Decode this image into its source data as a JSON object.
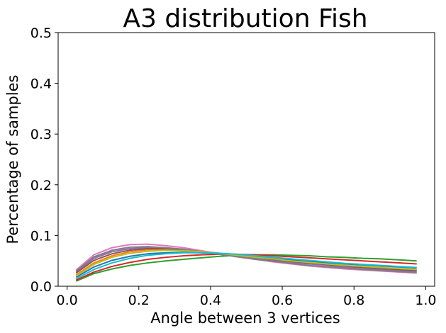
{
  "chart_data": {
    "type": "line",
    "title": "A3 distribution Fish",
    "xlabel": "Angle between 3 vertices",
    "ylabel": "Percentage of samples",
    "xlim": [
      -0.025,
      1.025
    ],
    "ylim": [
      0.0,
      0.5
    ],
    "xticks": [
      0.0,
      0.2,
      0.4,
      0.6,
      0.8,
      1.0
    ],
    "xtick_labels": [
      "0.0",
      "0.2",
      "0.4",
      "0.6",
      "0.8",
      "1.0"
    ],
    "yticks": [
      0.0,
      0.1,
      0.2,
      0.3,
      0.4,
      0.5
    ],
    "ytick_labels": [
      "0.0",
      "0.1",
      "0.2",
      "0.3",
      "0.4",
      "0.5"
    ],
    "grid": false,
    "legend": "none",
    "x": [
      0.025,
      0.075,
      0.125,
      0.175,
      0.225,
      0.275,
      0.325,
      0.375,
      0.425,
      0.475,
      0.525,
      0.575,
      0.625,
      0.675,
      0.725,
      0.775,
      0.825,
      0.875,
      0.925,
      0.975
    ],
    "series": [
      {
        "color": "#1f77b4",
        "values": [
          0.018,
          0.038,
          0.051,
          0.059,
          0.064,
          0.066,
          0.067,
          0.066,
          0.064,
          0.061,
          0.058,
          0.055,
          0.052,
          0.049,
          0.046,
          0.044,
          0.042,
          0.04,
          0.038,
          0.036
        ]
      },
      {
        "color": "#ff7f0e",
        "values": [
          0.022,
          0.046,
          0.06,
          0.068,
          0.072,
          0.073,
          0.072,
          0.069,
          0.065,
          0.061,
          0.057,
          0.053,
          0.049,
          0.046,
          0.043,
          0.04,
          0.038,
          0.036,
          0.034,
          0.032
        ]
      },
      {
        "color": "#2ca02c",
        "values": [
          0.01,
          0.025,
          0.034,
          0.041,
          0.046,
          0.05,
          0.053,
          0.056,
          0.059,
          0.061,
          0.062,
          0.062,
          0.061,
          0.06,
          0.058,
          0.057,
          0.055,
          0.054,
          0.052,
          0.05
        ]
      },
      {
        "color": "#d62728",
        "values": [
          0.012,
          0.028,
          0.039,
          0.047,
          0.053,
          0.057,
          0.06,
          0.062,
          0.063,
          0.063,
          0.062,
          0.06,
          0.058,
          0.056,
          0.054,
          0.052,
          0.05,
          0.048,
          0.046,
          0.044
        ]
      },
      {
        "color": "#9467bd",
        "values": [
          0.028,
          0.055,
          0.068,
          0.074,
          0.076,
          0.075,
          0.072,
          0.068,
          0.064,
          0.059,
          0.055,
          0.051,
          0.047,
          0.044,
          0.041,
          0.038,
          0.036,
          0.033,
          0.031,
          0.029
        ]
      },
      {
        "color": "#8c564b",
        "values": [
          0.026,
          0.051,
          0.064,
          0.071,
          0.074,
          0.074,
          0.072,
          0.069,
          0.065,
          0.061,
          0.057,
          0.053,
          0.049,
          0.046,
          0.043,
          0.04,
          0.037,
          0.035,
          0.033,
          0.031
        ]
      },
      {
        "color": "#e377c2",
        "values": [
          0.032,
          0.062,
          0.076,
          0.082,
          0.083,
          0.08,
          0.076,
          0.07,
          0.064,
          0.058,
          0.053,
          0.048,
          0.044,
          0.04,
          0.037,
          0.034,
          0.032,
          0.03,
          0.028,
          0.026
        ]
      },
      {
        "color": "#7f7f7f",
        "values": [
          0.03,
          0.058,
          0.071,
          0.077,
          0.078,
          0.076,
          0.073,
          0.068,
          0.063,
          0.058,
          0.053,
          0.049,
          0.045,
          0.041,
          0.038,
          0.036,
          0.033,
          0.031,
          0.029,
          0.027
        ]
      },
      {
        "color": "#bcbd22",
        "values": [
          0.02,
          0.043,
          0.057,
          0.065,
          0.069,
          0.071,
          0.07,
          0.068,
          0.065,
          0.061,
          0.057,
          0.054,
          0.05,
          0.047,
          0.044,
          0.041,
          0.039,
          0.037,
          0.035,
          0.033
        ]
      },
      {
        "color": "#17becf",
        "values": [
          0.015,
          0.033,
          0.046,
          0.055,
          0.061,
          0.064,
          0.066,
          0.066,
          0.065,
          0.063,
          0.06,
          0.057,
          0.054,
          0.051,
          0.048,
          0.045,
          0.043,
          0.041,
          0.039,
          0.037
        ]
      }
    ]
  }
}
